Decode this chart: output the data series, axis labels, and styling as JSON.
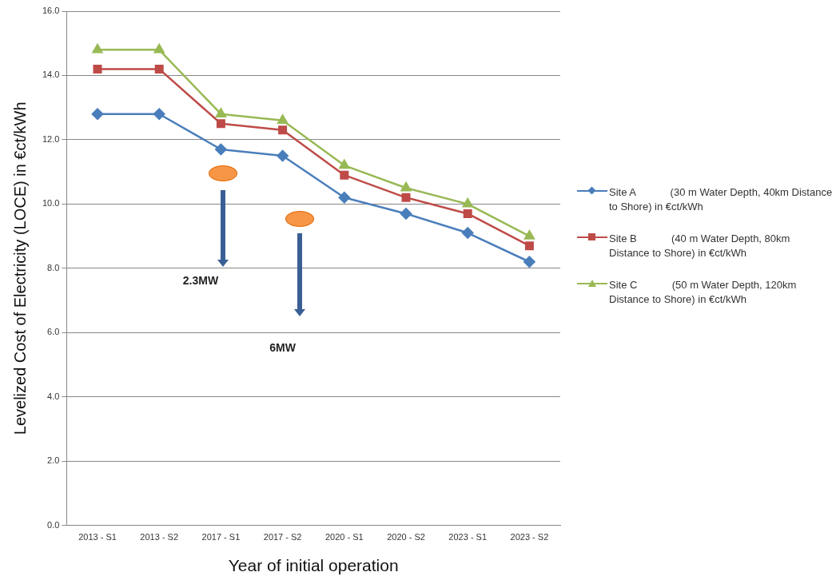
{
  "chart_data": {
    "type": "line",
    "xlabel": "Year of initial operation",
    "ylabel": "Levelized Cost of Electricity (LOCE) in €ct/kWh",
    "categories": [
      "2013 - S1",
      "2013 - S2",
      "2017 - S1",
      "2017 - S2",
      "2020 - S1",
      "2020 - S2",
      "2023 - S1",
      "2023 - S2"
    ],
    "series": [
      {
        "name": "Site A            (30 m Water Depth, 40km Distance to Shore) in €ct/kWh",
        "color": "#4a7ebb",
        "marker": "diamond",
        "values": [
          12.8,
          12.8,
          11.7,
          11.5,
          10.2,
          9.7,
          9.1,
          8.2
        ]
      },
      {
        "name": "Site B            (40 m Water Depth, 80km Distance to Shore) in €ct/kWh",
        "color": "#be4b48",
        "marker": "square",
        "values": [
          14.2,
          14.2,
          12.5,
          12.3,
          10.9,
          10.2,
          9.7,
          8.7
        ]
      },
      {
        "name": "Site C            (50 m Water Depth, 120km Distance to Shore) in €ct/kWh",
        "color": "#98b954",
        "marker": "triangle",
        "values": [
          14.8,
          14.8,
          12.8,
          12.6,
          11.2,
          10.5,
          10.0,
          9.0
        ]
      }
    ],
    "ylim": [
      0,
      16
    ],
    "yticks": [
      {
        "value": 0,
        "label": "0.0"
      },
      {
        "value": 2,
        "label": "2.0"
      },
      {
        "value": 4,
        "label": "4.0"
      },
      {
        "value": 6,
        "label": "6.0"
      },
      {
        "value": 8,
        "label": "8.0"
      },
      {
        "value": 10,
        "label": "10.0"
      },
      {
        "value": 12,
        "label": "12.0"
      },
      {
        "value": 14,
        "label": "14.0"
      },
      {
        "value": 16,
        "label": "16.0"
      }
    ],
    "grid": "y",
    "legend": "right",
    "line_style": "solid",
    "annotations": [
      "2.3MW",
      "6MW"
    ]
  }
}
